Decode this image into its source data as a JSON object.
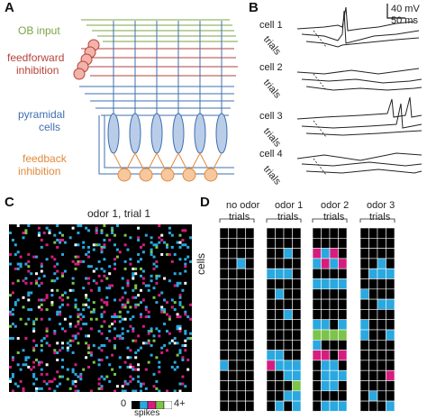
{
  "panels": {
    "a": {
      "letter": "A",
      "labels": {
        "ob_input": "OB input",
        "feedforward_1": "feedforward",
        "feedforward_2": "inhibition",
        "pyramidal_1": "pyramidal",
        "pyramidal_2": "cells",
        "feedback_1": "feedback",
        "feedback_2": "inhibition"
      },
      "colors": {
        "ob": "#7aa545",
        "feedforward": "#b5423b",
        "pyramidal": "#3f6fb0",
        "pyramidal_fill": "#b9cde9",
        "feedback": "#e08a3c",
        "feedback_fill": "#f7c79e",
        "ff_fill": "#f2b3a8"
      }
    },
    "b": {
      "letter": "B",
      "scale_mv": "40 mV",
      "scale_ms": "50 ms",
      "cells": [
        "cell 1",
        "cell 2",
        "cell 3",
        "cell 4"
      ],
      "trials_label": "trials"
    },
    "c": {
      "letter": "C",
      "title": "odor 1, trial 1",
      "legend_min": "0",
      "legend_max": "4+",
      "legend_label": "spikes",
      "colors": [
        "#000000",
        "#2aa8e0",
        "#d61d7f",
        "#7dc44a",
        "#ffffff"
      ]
    },
    "d": {
      "letter": "D",
      "groups": [
        {
          "title": "no odor",
          "sub": "trials"
        },
        {
          "title": "odor 1",
          "sub": "trials"
        },
        {
          "title": "odor 2",
          "sub": "trials"
        },
        {
          "title": "odor 3",
          "sub": "trials"
        }
      ],
      "axis_label": "cells",
      "colors": {
        "0": "#000000",
        "1": "#2aa8e0",
        "2": "#d61d7f",
        "3": "#7dc44a"
      },
      "matrices": [
        [
          [
            0,
            0,
            0,
            0
          ],
          [
            0,
            0,
            0,
            0
          ],
          [
            0,
            0,
            0,
            0
          ],
          [
            0,
            0,
            1,
            0
          ],
          [
            0,
            0,
            0,
            0
          ],
          [
            0,
            0,
            0,
            0
          ],
          [
            0,
            0,
            0,
            0
          ],
          [
            0,
            0,
            0,
            0
          ],
          [
            0,
            0,
            0,
            0
          ],
          [
            0,
            0,
            0,
            0
          ],
          [
            0,
            0,
            0,
            0
          ],
          [
            0,
            0,
            0,
            0
          ],
          [
            0,
            0,
            0,
            0
          ],
          [
            1,
            0,
            0,
            0
          ],
          [
            0,
            0,
            0,
            0
          ],
          [
            0,
            0,
            0,
            0
          ],
          [
            0,
            0,
            0,
            0
          ],
          [
            0,
            0,
            0,
            0
          ]
        ],
        [
          [
            0,
            0,
            0,
            0
          ],
          [
            0,
            0,
            0,
            0
          ],
          [
            0,
            0,
            1,
            0
          ],
          [
            0,
            0,
            0,
            0
          ],
          [
            1,
            1,
            1,
            0
          ],
          [
            0,
            0,
            0,
            0
          ],
          [
            0,
            1,
            0,
            0
          ],
          [
            0,
            0,
            0,
            0
          ],
          [
            0,
            0,
            1,
            0
          ],
          [
            0,
            0,
            0,
            0
          ],
          [
            0,
            0,
            0,
            0
          ],
          [
            0,
            0,
            0,
            0
          ],
          [
            1,
            1,
            0,
            0
          ],
          [
            2,
            1,
            1,
            1
          ],
          [
            0,
            0,
            1,
            1
          ],
          [
            0,
            0,
            0,
            3
          ],
          [
            0,
            0,
            1,
            1
          ],
          [
            0,
            1,
            0,
            1
          ]
        ],
        [
          [
            0,
            0,
            0,
            0
          ],
          [
            0,
            0,
            0,
            0
          ],
          [
            2,
            1,
            2,
            0
          ],
          [
            1,
            2,
            1,
            2
          ],
          [
            0,
            0,
            0,
            0
          ],
          [
            1,
            1,
            1,
            1
          ],
          [
            0,
            0,
            0,
            0
          ],
          [
            0,
            0,
            0,
            0
          ],
          [
            0,
            0,
            0,
            0
          ],
          [
            1,
            1,
            0,
            1
          ],
          [
            3,
            3,
            3,
            3
          ],
          [
            1,
            0,
            0,
            0
          ],
          [
            2,
            2,
            0,
            2
          ],
          [
            0,
            1,
            1,
            0
          ],
          [
            0,
            1,
            1,
            1
          ],
          [
            0,
            1,
            1,
            0
          ],
          [
            0,
            0,
            0,
            0
          ],
          [
            0,
            1,
            1,
            1
          ]
        ],
        [
          [
            0,
            0,
            0,
            0
          ],
          [
            0,
            0,
            0,
            0
          ],
          [
            0,
            0,
            0,
            0
          ],
          [
            0,
            0,
            1,
            0
          ],
          [
            0,
            1,
            1,
            1
          ],
          [
            0,
            0,
            0,
            0
          ],
          [
            1,
            0,
            0,
            0
          ],
          [
            0,
            0,
            1,
            1
          ],
          [
            0,
            0,
            0,
            0
          ],
          [
            1,
            0,
            0,
            0
          ],
          [
            1,
            0,
            0,
            1
          ],
          [
            0,
            0,
            0,
            0
          ],
          [
            0,
            0,
            0,
            0
          ],
          [
            0,
            0,
            0,
            0
          ],
          [
            0,
            0,
            0,
            2
          ],
          [
            0,
            0,
            0,
            0
          ],
          [
            0,
            1,
            0,
            0
          ],
          [
            0,
            0,
            0,
            1
          ]
        ]
      ]
    }
  }
}
